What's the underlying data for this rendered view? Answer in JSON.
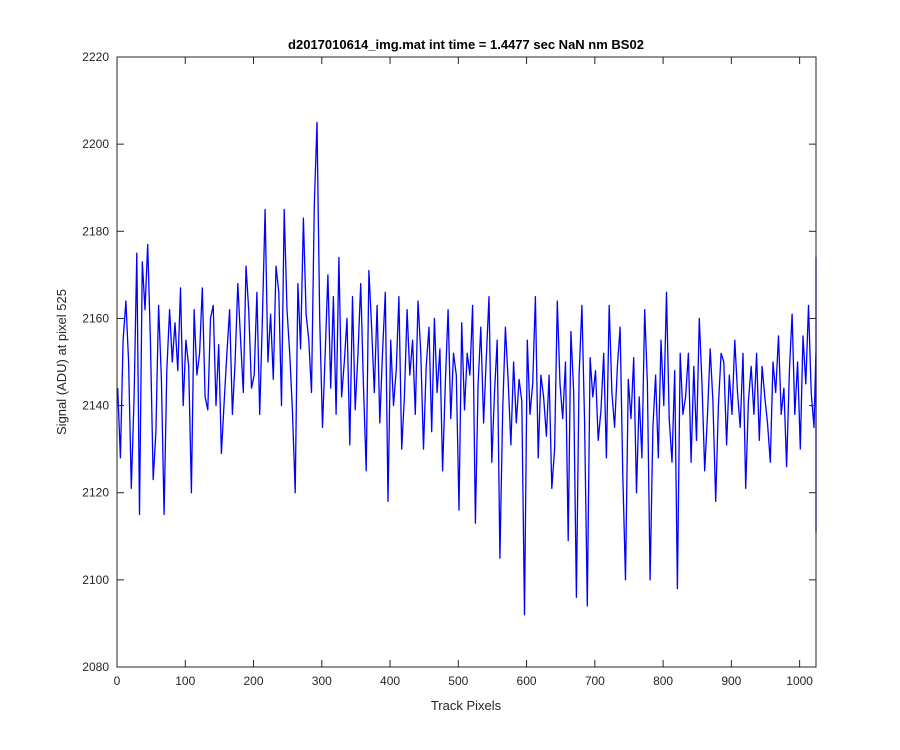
{
  "chart_data": {
    "type": "line",
    "title": "d2017010614_img.mat int time = 1.4477 sec  NaN nm BS02",
    "xlabel": "Track Pixels",
    "ylabel": "Signal (ADU) at pixel 525",
    "xlim": [
      0,
      1024
    ],
    "ylim": [
      2080,
      2220
    ],
    "xticks": [
      0,
      100,
      200,
      300,
      400,
      500,
      600,
      700,
      800,
      900,
      1000
    ],
    "yticks": [
      2080,
      2100,
      2120,
      2140,
      2160,
      2180,
      2200,
      2220
    ],
    "xtick_labels": [
      "0",
      "100",
      "200",
      "300",
      "400",
      "500",
      "600",
      "700",
      "800",
      "900",
      "1000"
    ],
    "ytick_labels": [
      "2080",
      "2100",
      "2120",
      "2140",
      "2160",
      "2180",
      "2200",
      "2220"
    ],
    "grid": false,
    "line_color": "#0000ff",
    "series": [
      {
        "name": "signal",
        "x_start": 1,
        "x_step": 4,
        "values": [
          2144,
          2128,
          2155,
          2164,
          2150,
          2121,
          2142,
          2175,
          2115,
          2173,
          2162,
          2177,
          2155,
          2123,
          2134,
          2163,
          2146,
          2115,
          2148,
          2162,
          2150,
          2159,
          2148,
          2167,
          2140,
          2155,
          2149,
          2120,
          2162,
          2147,
          2152,
          2167,
          2142,
          2139,
          2160,
          2163,
          2140,
          2154,
          2129,
          2141,
          2152,
          2162,
          2138,
          2150,
          2168,
          2155,
          2143,
          2172,
          2162,
          2144,
          2147,
          2166,
          2138,
          2160,
          2185,
          2150,
          2161,
          2146,
          2172,
          2166,
          2140,
          2185,
          2162,
          2152,
          2139,
          2120,
          2168,
          2153,
          2183,
          2161,
          2155,
          2143,
          2186,
          2205,
          2160,
          2135,
          2152,
          2170,
          2144,
          2165,
          2138,
          2174,
          2142,
          2150,
          2160,
          2131,
          2165,
          2139,
          2152,
          2168,
          2145,
          2125,
          2171,
          2158,
          2143,
          2163,
          2136,
          2152,
          2166,
          2118,
          2155,
          2140,
          2148,
          2165,
          2130,
          2142,
          2162,
          2147,
          2155,
          2138,
          2164,
          2152,
          2130,
          2149,
          2158,
          2134,
          2160,
          2143,
          2153,
          2125,
          2145,
          2162,
          2137,
          2152,
          2147,
          2116,
          2159,
          2139,
          2152,
          2147,
          2163,
          2113,
          2145,
          2158,
          2136,
          2151,
          2165,
          2127,
          2143,
          2155,
          2105,
          2139,
          2158,
          2146,
          2131,
          2150,
          2136,
          2146,
          2141,
          2092,
          2155,
          2138,
          2145,
          2165,
          2128,
          2147,
          2142,
          2133,
          2147,
          2121,
          2130,
          2164,
          2145,
          2137,
          2150,
          2109,
          2157,
          2143,
          2096,
          2147,
          2163,
          2136,
          2094,
          2151,
          2142,
          2148,
          2132,
          2139,
          2152,
          2128,
          2163,
          2143,
          2135,
          2149,
          2158,
          2124,
          2100,
          2146,
          2137,
          2151,
          2120,
          2142,
          2128,
          2162,
          2145,
          2100,
          2135,
          2147,
          2128,
          2155,
          2140,
          2166,
          2137,
          2127,
          2148,
          2098,
          2152,
          2138,
          2142,
          2152,
          2127,
          2149,
          2132,
          2160,
          2145,
          2125,
          2138,
          2153,
          2141,
          2118,
          2140,
          2152,
          2150,
          2131,
          2147,
          2138,
          2155,
          2143,
          2135,
          2152,
          2121,
          2141,
          2149,
          2138,
          2152,
          2132,
          2149,
          2142,
          2136,
          2127,
          2150,
          2143,
          2156,
          2138,
          2144,
          2126,
          2148,
          2161,
          2138,
          2150,
          2130,
          2156,
          2145,
          2163,
          2143,
          2135,
          2153,
          2174,
          2125,
          2139,
          2111,
          2166
        ]
      }
    ]
  }
}
